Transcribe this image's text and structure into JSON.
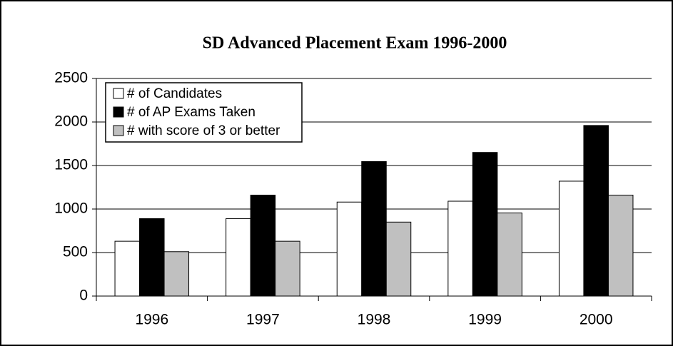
{
  "chart_data": {
    "type": "bar",
    "title": "SD Advanced Placement Exam 1996-2000",
    "categories": [
      "1996",
      "1997",
      "1998",
      "1999",
      "2000"
    ],
    "series": [
      {
        "name": "# of Candidates",
        "color": "#ffffff",
        "values": [
          630,
          890,
          1080,
          1090,
          1320
        ]
      },
      {
        "name": "# of AP Exams Taken",
        "color": "#000000",
        "values": [
          890,
          1160,
          1545,
          1650,
          1960
        ]
      },
      {
        "name": "# with score of 3 or better",
        "color": "#c0c0c0",
        "values": [
          510,
          630,
          850,
          955,
          1160
        ]
      }
    ],
    "ylim": [
      0,
      2500
    ],
    "yticks": [
      0,
      500,
      1000,
      1500,
      2000,
      2500
    ],
    "grid": true,
    "legend": "top-left"
  }
}
